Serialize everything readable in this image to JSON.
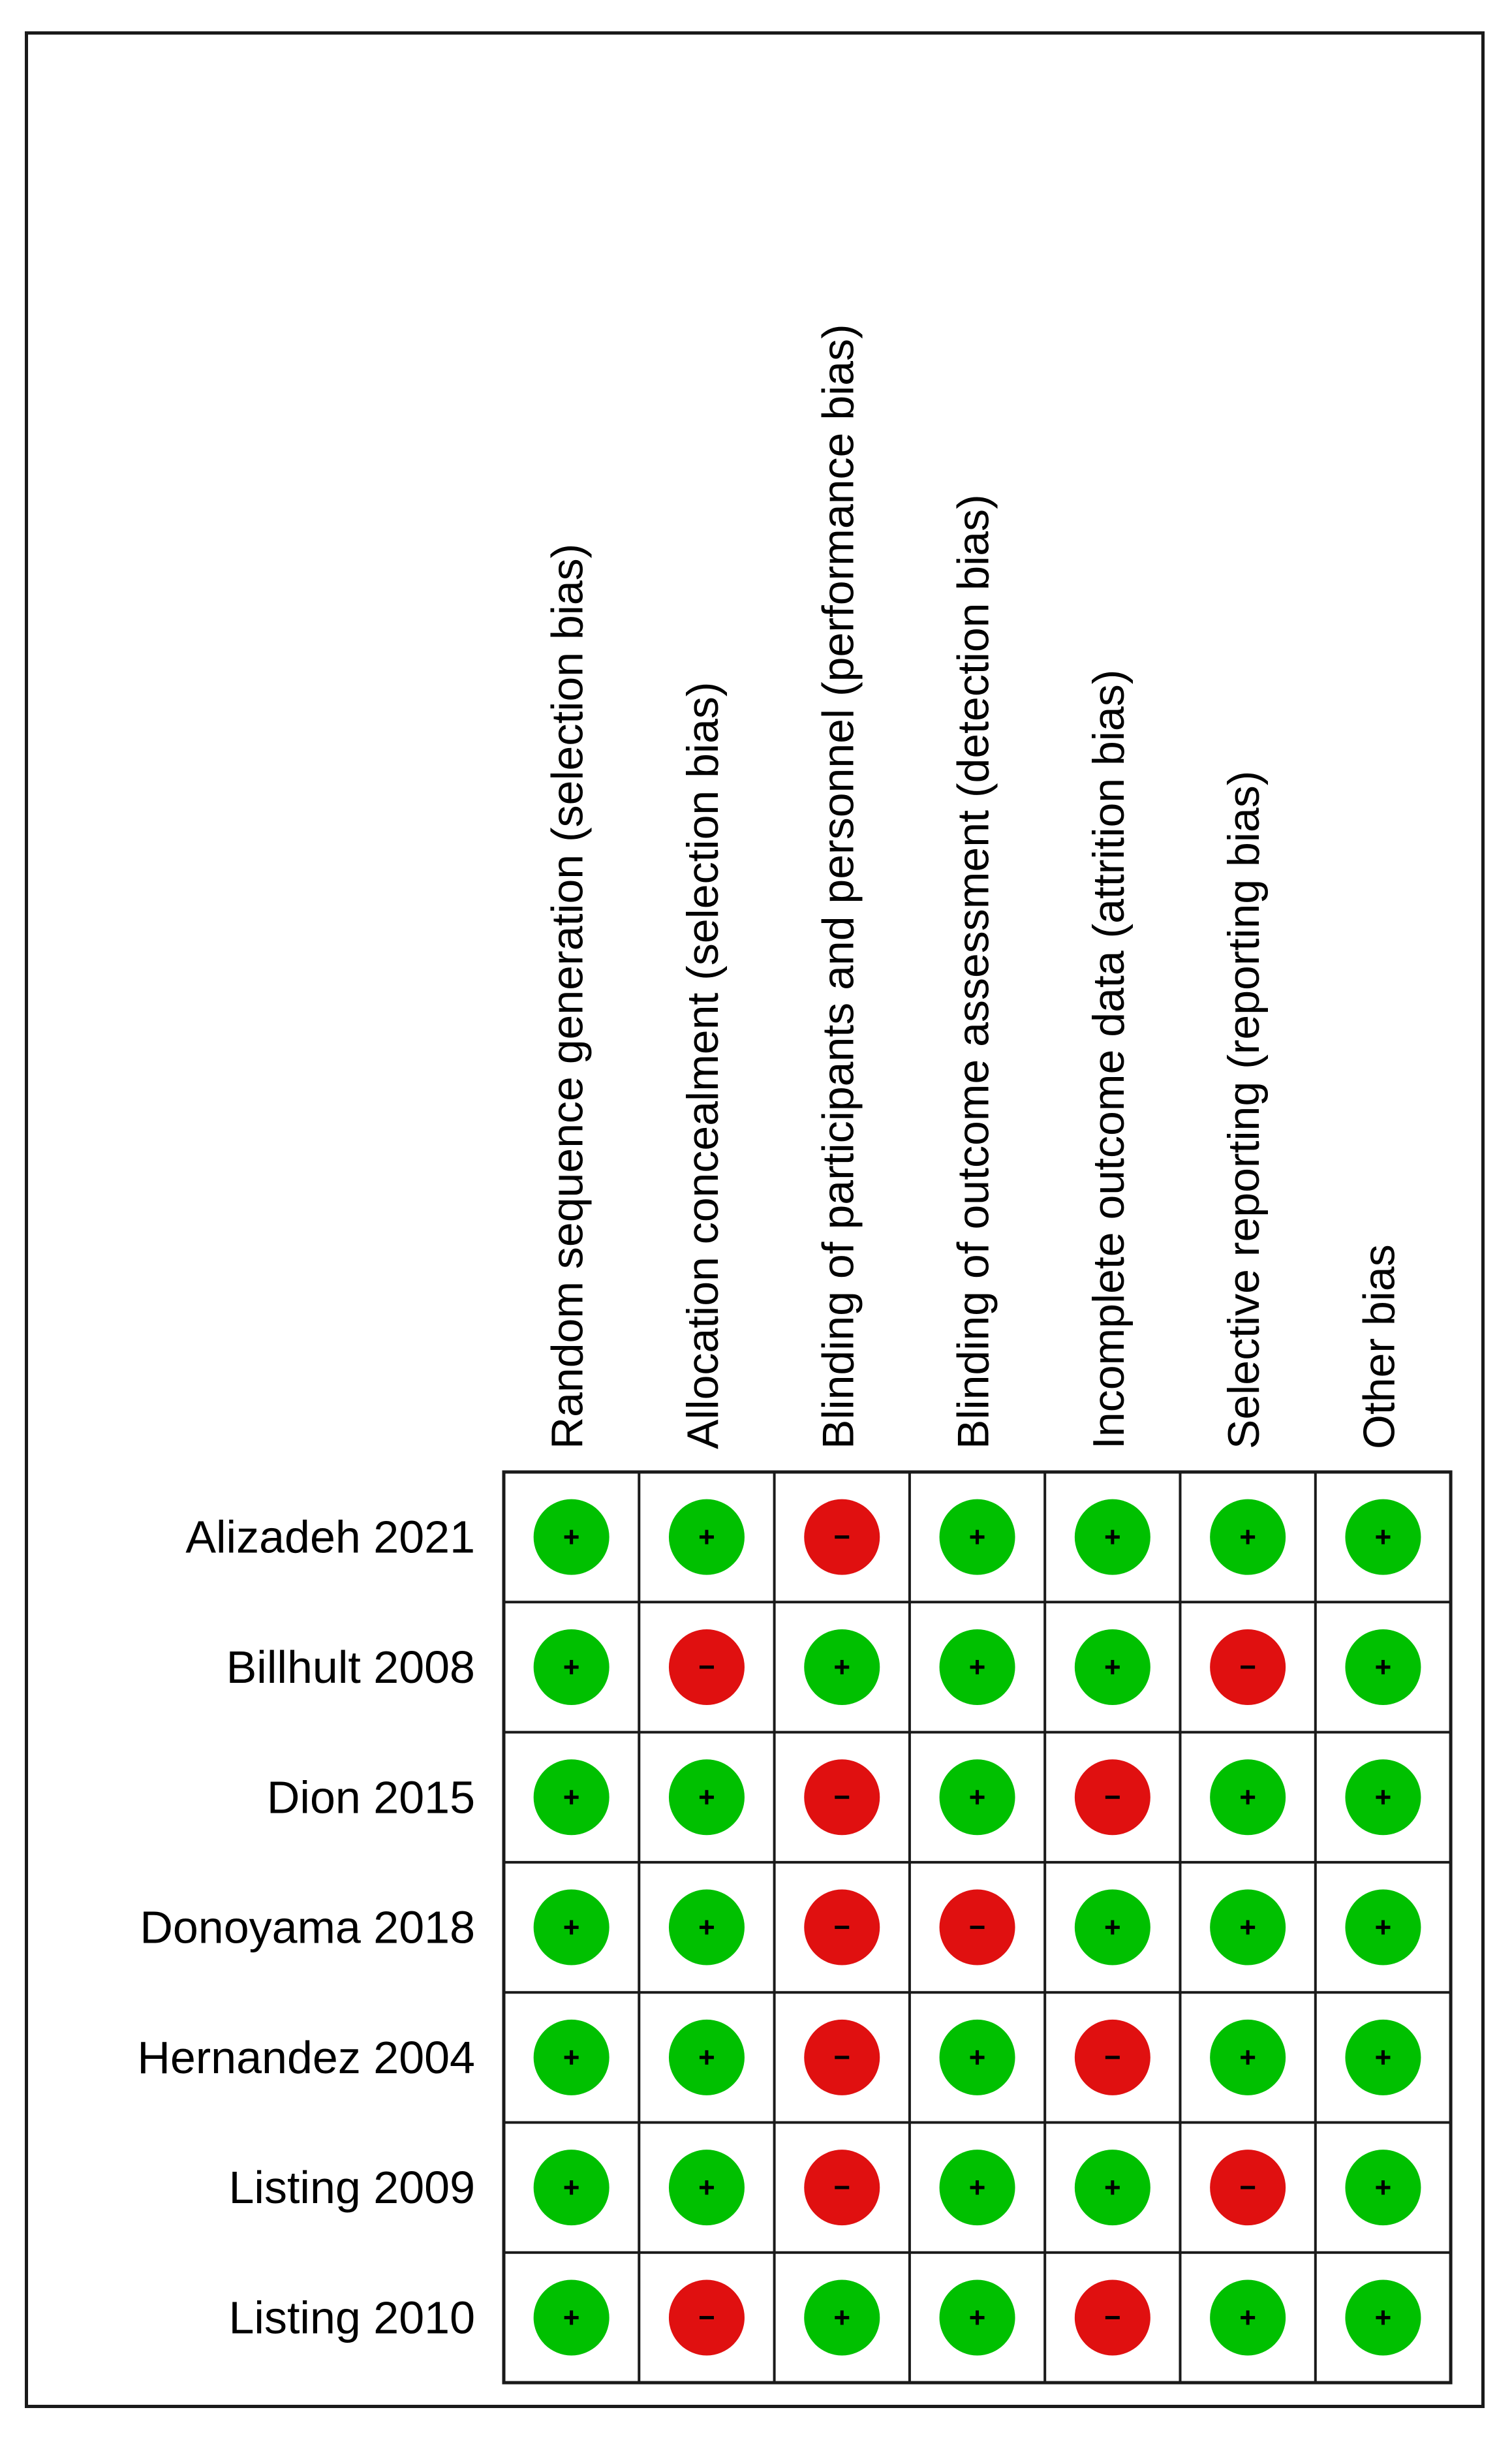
{
  "chart_data": {
    "type": "table",
    "domains": [
      "Random sequence generation (selection bias)",
      "Allocation concealment (selection bias)",
      "Blinding of participants and personnel (performance bias)",
      "Blinding of outcome assessment (detection bias)",
      "Incomplete outcome data (attrition bias)",
      "Selective reporting (reporting bias)",
      "Other bias"
    ],
    "studies": [
      "Alizadeh 2021",
      "Billhult 2008",
      "Dion 2015",
      "Donoyama 2018",
      "Hernandez 2004",
      "Listing 2009",
      "Listing 2010"
    ],
    "judgements": [
      [
        "+",
        "+",
        "-",
        "+",
        "+",
        "+",
        "+"
      ],
      [
        "+",
        "-",
        "+",
        "+",
        "+",
        "-",
        "+"
      ],
      [
        "+",
        "+",
        "-",
        "+",
        "-",
        "+",
        "+"
      ],
      [
        "+",
        "+",
        "-",
        "-",
        "+",
        "+",
        "+"
      ],
      [
        "+",
        "+",
        "-",
        "+",
        "-",
        "+",
        "+"
      ],
      [
        "+",
        "+",
        "-",
        "+",
        "+",
        "-",
        "+"
      ],
      [
        "+",
        "-",
        "+",
        "+",
        "-",
        "+",
        "+"
      ]
    ],
    "symbols": {
      "low_risk": "+",
      "high_risk": "-"
    },
    "colors": {
      "low_risk": "#00c000",
      "high_risk": "#e01010",
      "grid": "#1a1a1a"
    }
  }
}
